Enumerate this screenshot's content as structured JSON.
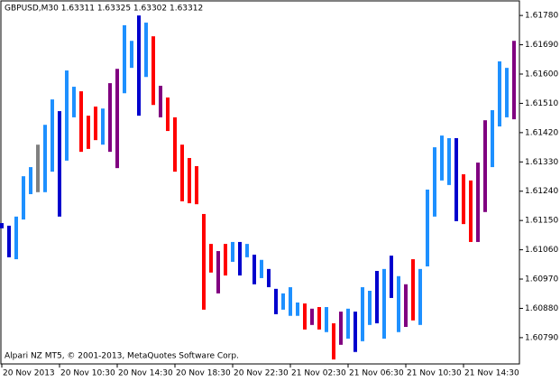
{
  "chart_data": {
    "type": "bar",
    "title": "GBPUSD,M30  1.63311 1.63325 1.63302 1.63312",
    "footer": "Alpari NZ MT5, © 2001-2013, MetaQuotes Software Corp.",
    "categories": [
      "20 Nov 2013",
      null,
      null,
      null,
      null,
      null,
      null,
      null,
      "20 Nov 10:30",
      null,
      null,
      null,
      null,
      null,
      null,
      null,
      "20 Nov 14:30",
      null,
      null,
      null,
      null,
      null,
      null,
      null,
      "20 Nov 18:30",
      null,
      null,
      null,
      null,
      null,
      null,
      null,
      "20 Nov 22:30",
      null,
      null,
      null,
      null,
      null,
      null,
      null,
      "21 Nov 02:30",
      null,
      null,
      null,
      null,
      null,
      null,
      null,
      "21 Nov 06:30",
      null,
      null,
      null,
      null,
      null,
      null,
      null,
      "21 Nov 10:30",
      null,
      null,
      null,
      null,
      null,
      null,
      null,
      "21 Nov 14:30",
      null,
      null,
      null,
      null,
      null,
      null,
      null
    ],
    "high": [
      1.61142,
      1.61134,
      1.61162,
      1.61286,
      1.61314,
      1.61383,
      1.61444,
      1.61522,
      1.61486,
      1.61611,
      1.61561,
      1.61547,
      1.61472,
      1.615,
      1.61494,
      1.61572,
      1.61616,
      1.6175,
      1.61702,
      1.6178,
      1.61758,
      1.61716,
      1.61564,
      1.61528,
      1.61467,
      1.61383,
      1.61342,
      1.61317,
      1.6117,
      1.61078,
      1.61056,
      1.61078,
      1.61084,
      1.61084,
      1.61078,
      1.61045,
      1.61029,
      1.61001,
      1.6094,
      1.60926,
      1.60945,
      1.60898,
      1.60895,
      1.60879,
      1.60884,
      1.60884,
      1.60834,
      1.6087,
      1.60879,
      1.6087,
      1.60945,
      1.60934,
      1.60995,
      1.61001,
      1.61042,
      1.60979,
      1.60954,
      1.61031,
      1.61001,
      1.61245,
      1.61375,
      1.61411,
      1.61403,
      1.61403,
      1.61292,
      1.61273,
      1.61328,
      1.61458,
      1.61489,
      1.61639,
      1.61619,
      1.61702
    ],
    "low": [
      1.61126,
      1.61037,
      1.61031,
      1.61153,
      1.61231,
      1.61237,
      1.61237,
      1.613,
      1.61162,
      1.61334,
      1.61467,
      1.61361,
      1.6137,
      1.61397,
      1.61383,
      1.61361,
      1.61311,
      1.61541,
      1.61619,
      1.61472,
      1.61591,
      1.61505,
      1.61467,
      1.61425,
      1.613,
      1.61209,
      1.61203,
      1.612,
      1.60876,
      1.6099,
      1.60926,
      1.60981,
      1.61023,
      1.60981,
      1.61037,
      1.60954,
      1.60973,
      1.60945,
      1.60862,
      1.60876,
      1.60857,
      1.60857,
      1.60815,
      1.60829,
      1.60815,
      1.60807,
      1.60723,
      1.60768,
      1.60787,
      1.60746,
      1.60779,
      1.60829,
      1.60834,
      1.60787,
      1.60912,
      1.60807,
      1.60823,
      1.60843,
      1.60829,
      1.61009,
      1.61162,
      1.61273,
      1.61259,
      1.61148,
      1.61139,
      1.61084,
      1.61084,
      1.61176,
      1.61314,
      1.61439,
      1.61467,
      1.61461
    ],
    "colors": [
      "#0000cd",
      "#0000cd",
      "#1e90ff",
      "#1e90ff",
      "#1e90ff",
      "#808080",
      "#1e90ff",
      "#1e90ff",
      "#0000cd",
      "#1e90ff",
      "#1e90ff",
      "#ff0000",
      "#ff0000",
      "#ff0000",
      "#1e90ff",
      "#800080",
      "#800080",
      "#1e90ff",
      "#1e90ff",
      "#0000cd",
      "#1e90ff",
      "#ff0000",
      "#800080",
      "#ff0000",
      "#ff0000",
      "#ff0000",
      "#ff0000",
      "#ff0000",
      "#ff0000",
      "#ff0000",
      "#800080",
      "#ff0000",
      "#1e90ff",
      "#0000cd",
      "#1e90ff",
      "#0000cd",
      "#1e90ff",
      "#0000cd",
      "#0000cd",
      "#1e90ff",
      "#1e90ff",
      "#1e90ff",
      "#ff0000",
      "#800080",
      "#ff0000",
      "#1e90ff",
      "#ff0000",
      "#800080",
      "#1e90ff",
      "#0000cd",
      "#1e90ff",
      "#1e90ff",
      "#0000cd",
      "#1e90ff",
      "#0000cd",
      "#1e90ff",
      "#800080",
      "#ff0000",
      "#1e90ff",
      "#1e90ff",
      "#1e90ff",
      "#1e90ff",
      "#1e90ff",
      "#0000cd",
      "#ff0000",
      "#ff0000",
      "#800080",
      "#800080",
      "#1e90ff",
      "#1e90ff",
      "#1e90ff",
      "#800080"
    ],
    "ylim": [
      1.60712,
      1.61822
    ],
    "yticks": [
      {
        "value": 1.6079,
        "label": "1.60790"
      },
      {
        "value": 1.6088,
        "label": "1.60880"
      },
      {
        "value": 1.6097,
        "label": "1.60970"
      },
      {
        "value": 1.6106,
        "label": "1.61060"
      },
      {
        "value": 1.6115,
        "label": "1.61150"
      },
      {
        "value": 1.6124,
        "label": "1.61240"
      },
      {
        "value": 1.6133,
        "label": "1.61330"
      },
      {
        "value": 1.6142,
        "label": "1.61420"
      },
      {
        "value": 1.6151,
        "label": "1.61510"
      },
      {
        "value": 1.616,
        "label": "1.61600"
      },
      {
        "value": 1.6169,
        "label": "1.61690"
      },
      {
        "value": 1.6178,
        "label": "1.61780"
      }
    ]
  }
}
